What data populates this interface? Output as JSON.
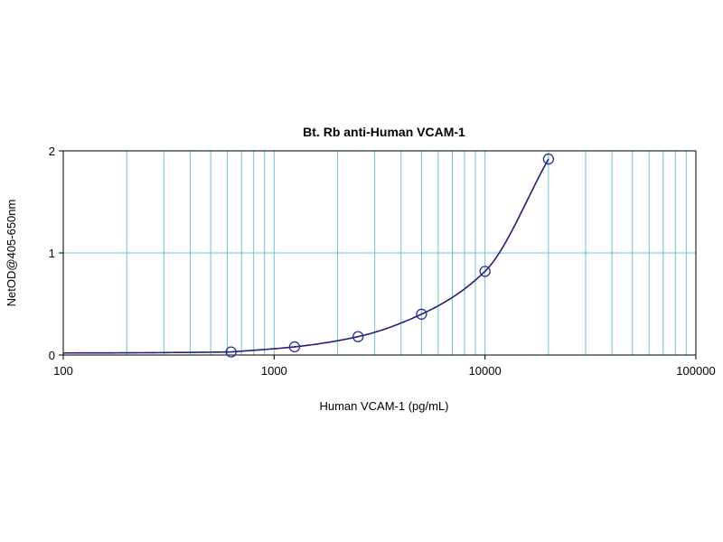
{
  "chart_data": {
    "type": "scatter",
    "title": "Bt. Rb anti-Human VCAM-1",
    "xlabel": "Human VCAM-1 (pg/mL)",
    "ylabel": "NetOD@405-650nm",
    "x_scale": "log",
    "xlim": [
      100,
      100000
    ],
    "ylim": [
      0,
      2
    ],
    "x_ticks": [
      "100",
      "1000",
      "10000",
      "100000"
    ],
    "y_ticks": [
      "0",
      "1",
      "2"
    ],
    "grid": true,
    "colors": {
      "grid": "#6ec3d4",
      "curve": "#1f1f7a",
      "points": "#2b2b99",
      "axis": "#000000"
    },
    "series": [
      {
        "x": [
          625,
          1250,
          2500,
          5000,
          10000,
          20000
        ],
        "y": [
          0.03,
          0.08,
          0.18,
          0.4,
          0.82,
          1.92
        ]
      }
    ]
  }
}
